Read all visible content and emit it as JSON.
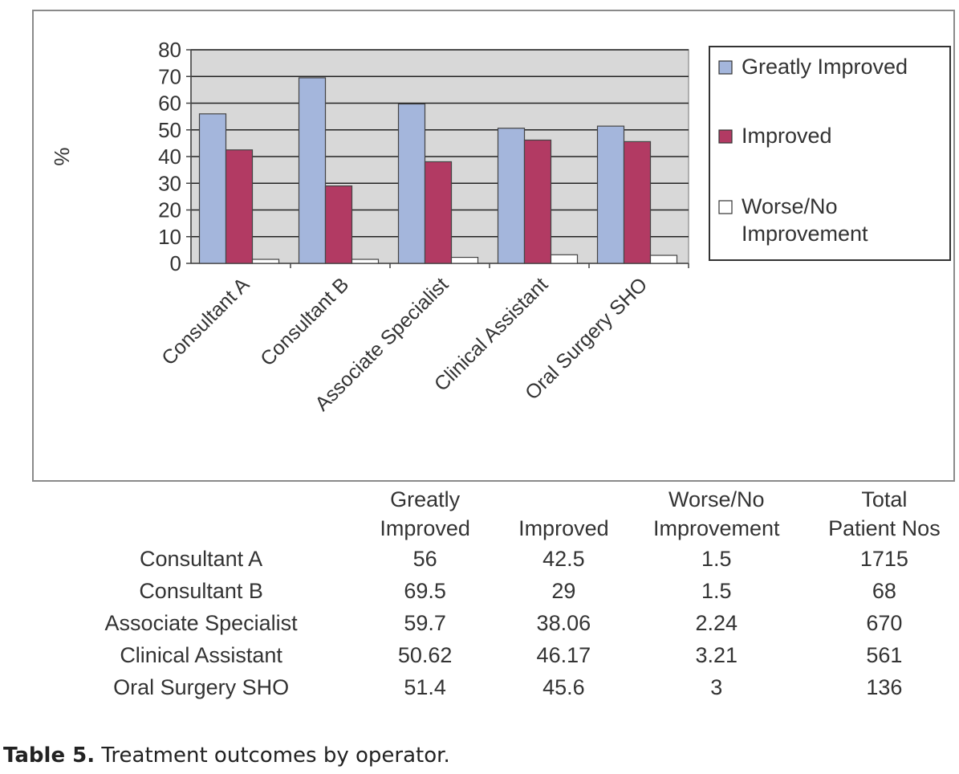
{
  "chart_data": {
    "type": "bar",
    "categories": [
      "Consultant A",
      "Consultant B",
      "Associate Specialist",
      "Clinical Assistant",
      "Oral Surgery SHO"
    ],
    "series": [
      {
        "name": "Greatly Improved",
        "values": [
          56,
          69.5,
          59.7,
          50.62,
          51.4
        ],
        "color": "#a4b6dc"
      },
      {
        "name": "Improved",
        "values": [
          42.5,
          29,
          38.06,
          46.17,
          45.6
        ],
        "color": "#b23a63"
      },
      {
        "name": "Worse/No Improvement",
        "values": [
          1.5,
          1.5,
          2.24,
          3.21,
          3
        ],
        "color": "#ffffff"
      }
    ],
    "title": "",
    "xlabel": "",
    "ylabel": "%",
    "ylim": [
      0,
      80
    ],
    "yticks": [
      0,
      10,
      20,
      30,
      40,
      50,
      60,
      70,
      80
    ],
    "grid": true,
    "plot_background": "#d8d8d8",
    "legend_position": "right"
  },
  "table": {
    "headers": [
      {
        "line1": "",
        "line2": ""
      },
      {
        "line1": "Greatly",
        "line2": "Improved"
      },
      {
        "line1": "",
        "line2": "Improved"
      },
      {
        "line1": "Worse/No",
        "line2": "Improvement"
      },
      {
        "line1": "Total",
        "line2": "Patient Nos"
      }
    ],
    "rows": [
      [
        "Consultant A",
        "56",
        "42.5",
        "1.5",
        "1715"
      ],
      [
        "Consultant B",
        "69.5",
        "29",
        "1.5",
        "68"
      ],
      [
        "Associate Specialist",
        "59.7",
        "38.06",
        "2.24",
        "670"
      ],
      [
        "Clinical Assistant",
        "50.62",
        "46.17",
        "3.21",
        "561"
      ],
      [
        "Oral Surgery SHO",
        "51.4",
        "45.6",
        "3",
        "136"
      ]
    ]
  },
  "caption": {
    "label": "Table 5.",
    "text": " Treatment outcomes by operator."
  }
}
